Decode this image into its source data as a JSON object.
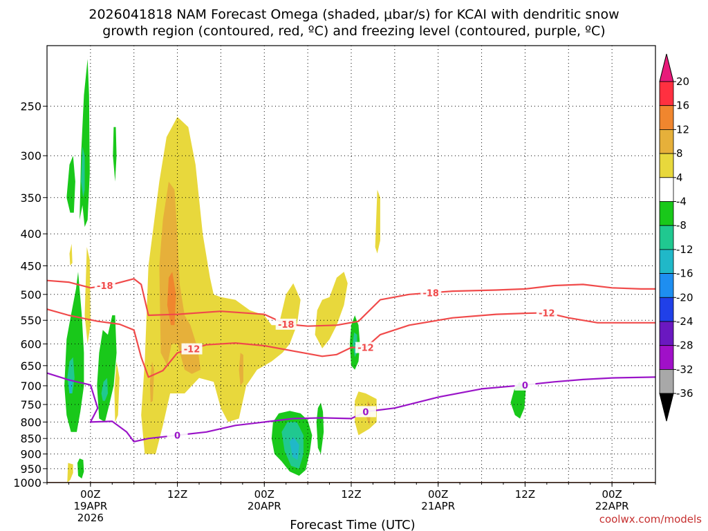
{
  "title_line1": "2026041818 NAM Forecast Omega (shaded, μbar/s) for KCAI with dendritic snow",
  "title_line2": "growth region (contoured, red, ºC) and freezing level (contoured, purple, ºC)",
  "credit": "coolwx.com/models",
  "chart_data": {
    "type": "heatmap",
    "title": "2026041818 NAM Forecast Omega (shaded, μbar/s) for KCAI with dendritic snow growth region (contoured, red, ºC) and freezing level (contoured, purple, ºC)",
    "xlabel": "Forecast Time (UTC)",
    "ylabel": "",
    "x_unit": "hours after 2026-04-18 18Z",
    "xlim": [
      0,
      84
    ],
    "ylim_hpa": [
      1000,
      200
    ],
    "y_ticks": [
      250,
      300,
      350,
      400,
      450,
      500,
      550,
      600,
      650,
      700,
      750,
      800,
      850,
      900,
      950,
      1000
    ],
    "x_ticks": [
      {
        "hour": 6,
        "line1": "00Z",
        "line2": "19APR",
        "line3": "2026"
      },
      {
        "hour": 18,
        "line1": "12Z",
        "line2": "",
        "line3": ""
      },
      {
        "hour": 30,
        "line1": "00Z",
        "line2": "20APR",
        "line3": ""
      },
      {
        "hour": 42,
        "line1": "12Z",
        "line2": "",
        "line3": ""
      },
      {
        "hour": 54,
        "line1": "00Z",
        "line2": "21APR",
        "line3": ""
      },
      {
        "hour": 66,
        "line1": "12Z",
        "line2": "",
        "line3": ""
      },
      {
        "hour": 78,
        "line1": "00Z",
        "line2": "22APR",
        "line3": ""
      }
    ],
    "colorbar": {
      "labels": [
        "20",
        "16",
        "12",
        "8",
        "4",
        "-4",
        "-8",
        "-12",
        "-16",
        "-20",
        "-24",
        "-28",
        "-32",
        "-36"
      ],
      "colors": [
        "#ff3040",
        "#f0862e",
        "#e6b03a",
        "#e8d83c",
        "#ffffff",
        "#19c81a",
        "#20c890",
        "#20b8c8",
        "#1e8ef0",
        "#2040e8",
        "#6a18c0",
        "#a010c8",
        "#a8a8a8"
      ],
      "top_arrow_color": "#e81a7a",
      "bottom_arrow_color": "#000000"
    },
    "ground_color": "#a0522d",
    "contours": [
      {
        "name": "-18",
        "color": "#f04a4a",
        "label_hours": [
          8,
          33,
          53
        ],
        "points": [
          [
            0,
            475
          ],
          [
            3,
            478
          ],
          [
            6,
            488
          ],
          [
            9,
            482
          ],
          [
            12,
            472
          ],
          [
            13,
            482
          ],
          [
            14,
            540
          ],
          [
            18,
            538
          ],
          [
            24,
            532
          ],
          [
            30,
            538
          ],
          [
            33,
            558
          ],
          [
            36,
            562
          ],
          [
            40,
            560
          ],
          [
            43,
            552
          ],
          [
            46,
            510
          ],
          [
            50,
            500
          ],
          [
            56,
            494
          ],
          [
            62,
            492
          ],
          [
            66,
            490
          ],
          [
            70,
            484
          ],
          [
            74,
            482
          ],
          [
            78,
            488
          ],
          [
            82,
            490
          ],
          [
            84,
            490
          ]
        ]
      },
      {
        "name": "-12",
        "color": "#f04a4a",
        "label_hours": [
          20,
          44,
          69
        ],
        "points": [
          [
            0,
            528
          ],
          [
            3,
            540
          ],
          [
            7,
            552
          ],
          [
            10,
            558
          ],
          [
            12,
            570
          ],
          [
            13,
            630
          ],
          [
            14,
            678
          ],
          [
            16,
            662
          ],
          [
            18,
            620
          ],
          [
            22,
            602
          ],
          [
            26,
            598
          ],
          [
            30,
            604
          ],
          [
            34,
            616
          ],
          [
            38,
            628
          ],
          [
            40,
            624
          ],
          [
            42,
            608
          ],
          [
            44,
            608
          ],
          [
            46,
            580
          ],
          [
            50,
            560
          ],
          [
            56,
            545
          ],
          [
            62,
            538
          ],
          [
            66,
            536
          ],
          [
            69,
            535
          ],
          [
            72,
            545
          ],
          [
            76,
            555
          ],
          [
            80,
            555
          ],
          [
            84,
            555
          ]
        ]
      },
      {
        "name": "0",
        "color": "#9a14c8",
        "label_hours": [
          18,
          44,
          66
        ],
        "points": [
          [
            0,
            668
          ],
          [
            3,
            685
          ],
          [
            6,
            698
          ],
          [
            7,
            760
          ],
          [
            6,
            800
          ],
          [
            9,
            798
          ],
          [
            11,
            830
          ],
          [
            12,
            860
          ],
          [
            14,
            850
          ],
          [
            18,
            840
          ],
          [
            22,
            830
          ],
          [
            26,
            810
          ],
          [
            30,
            800
          ],
          [
            34,
            790
          ],
          [
            38,
            788
          ],
          [
            42,
            790
          ],
          [
            44,
            770
          ],
          [
            48,
            760
          ],
          [
            54,
            730
          ],
          [
            60,
            708
          ],
          [
            66,
            698
          ],
          [
            70,
            690
          ],
          [
            74,
            684
          ],
          [
            78,
            680
          ],
          [
            84,
            678
          ]
        ]
      }
    ]
  }
}
